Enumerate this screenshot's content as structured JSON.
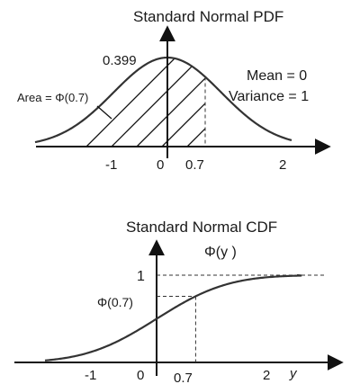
{
  "pdf": {
    "title": "Standard Normal PDF",
    "peak_label": "0.399",
    "area_label": "Area = Φ(0.7)",
    "mean_label": "Mean = 0",
    "variance_label": "Variance = 1",
    "x_ticks": [
      "-1",
      "0",
      "0.7",
      "2"
    ]
  },
  "cdf": {
    "title": "Standard Normal CDF",
    "func_label": "Φ(y )",
    "y_tick_one": "1",
    "y_tick_phi": "Φ(0.7)",
    "x_ticks": [
      "-1",
      "0",
      "0.7",
      "2"
    ],
    "x_axis_label": "y"
  }
}
